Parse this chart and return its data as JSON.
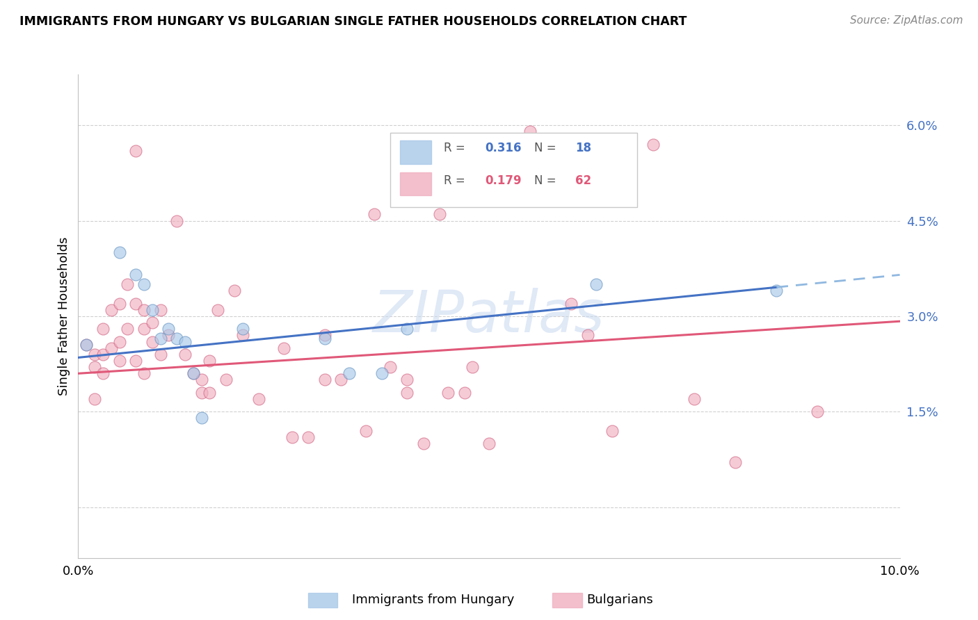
{
  "title": "IMMIGRANTS FROM HUNGARY VS BULGARIAN SINGLE FATHER HOUSEHOLDS CORRELATION CHART",
  "source": "Source: ZipAtlas.com",
  "ylabel": "Single Father Households",
  "y_ticks": [
    0.0,
    0.015,
    0.03,
    0.045,
    0.06
  ],
  "y_tick_labels": [
    "",
    "1.5%",
    "3.0%",
    "4.5%",
    "6.0%"
  ],
  "x_min": 0.0,
  "x_max": 0.1,
  "y_min": -0.008,
  "y_max": 0.068,
  "hungary_color": "#a8c8e8",
  "hungary_edge_color": "#6090c0",
  "bulgaria_color": "#f0b0c0",
  "bulgaria_edge_color": "#d06080",
  "hungary_line_color": "#4472c4",
  "hungary_dash_color": "#90b8e0",
  "bulgaria_line_color": "#e05878",
  "hungary_R": 0.316,
  "hungary_N": 18,
  "bulgaria_R": 0.179,
  "bulgaria_N": 62,
  "hungary_intercept": 0.0235,
  "hungary_slope": 0.13,
  "bulgaria_intercept": 0.021,
  "bulgaria_slope": 0.082,
  "hungary_x": [
    0.001,
    0.005,
    0.007,
    0.008,
    0.009,
    0.01,
    0.011,
    0.012,
    0.013,
    0.014,
    0.015,
    0.02,
    0.03,
    0.033,
    0.037,
    0.04,
    0.063,
    0.085
  ],
  "hungary_y": [
    0.0255,
    0.04,
    0.0365,
    0.035,
    0.031,
    0.0265,
    0.028,
    0.0265,
    0.026,
    0.021,
    0.014,
    0.028,
    0.0265,
    0.021,
    0.021,
    0.028,
    0.035,
    0.034
  ],
  "bulgaria_x": [
    0.001,
    0.002,
    0.002,
    0.002,
    0.003,
    0.003,
    0.003,
    0.004,
    0.004,
    0.005,
    0.005,
    0.005,
    0.006,
    0.006,
    0.007,
    0.007,
    0.007,
    0.008,
    0.008,
    0.008,
    0.009,
    0.009,
    0.01,
    0.01,
    0.011,
    0.012,
    0.013,
    0.014,
    0.015,
    0.015,
    0.016,
    0.016,
    0.017,
    0.018,
    0.019,
    0.02,
    0.022,
    0.025,
    0.026,
    0.028,
    0.03,
    0.03,
    0.032,
    0.035,
    0.036,
    0.038,
    0.04,
    0.04,
    0.042,
    0.044,
    0.045,
    0.047,
    0.048,
    0.05,
    0.055,
    0.06,
    0.062,
    0.065,
    0.07,
    0.075,
    0.08,
    0.09
  ],
  "bulgaria_y": [
    0.0255,
    0.024,
    0.022,
    0.017,
    0.028,
    0.024,
    0.021,
    0.031,
    0.025,
    0.032,
    0.026,
    0.023,
    0.035,
    0.028,
    0.056,
    0.032,
    0.023,
    0.031,
    0.028,
    0.021,
    0.029,
    0.026,
    0.031,
    0.024,
    0.027,
    0.045,
    0.024,
    0.021,
    0.02,
    0.018,
    0.023,
    0.018,
    0.031,
    0.02,
    0.034,
    0.027,
    0.017,
    0.025,
    0.011,
    0.011,
    0.027,
    0.02,
    0.02,
    0.012,
    0.046,
    0.022,
    0.02,
    0.018,
    0.01,
    0.046,
    0.018,
    0.018,
    0.022,
    0.01,
    0.059,
    0.032,
    0.027,
    0.012,
    0.057,
    0.017,
    0.007,
    0.015
  ],
  "watermark": "ZIPatlas",
  "legend_hungary_label": "Immigrants from Hungary",
  "legend_bulgaria_label": "Bulgarians"
}
